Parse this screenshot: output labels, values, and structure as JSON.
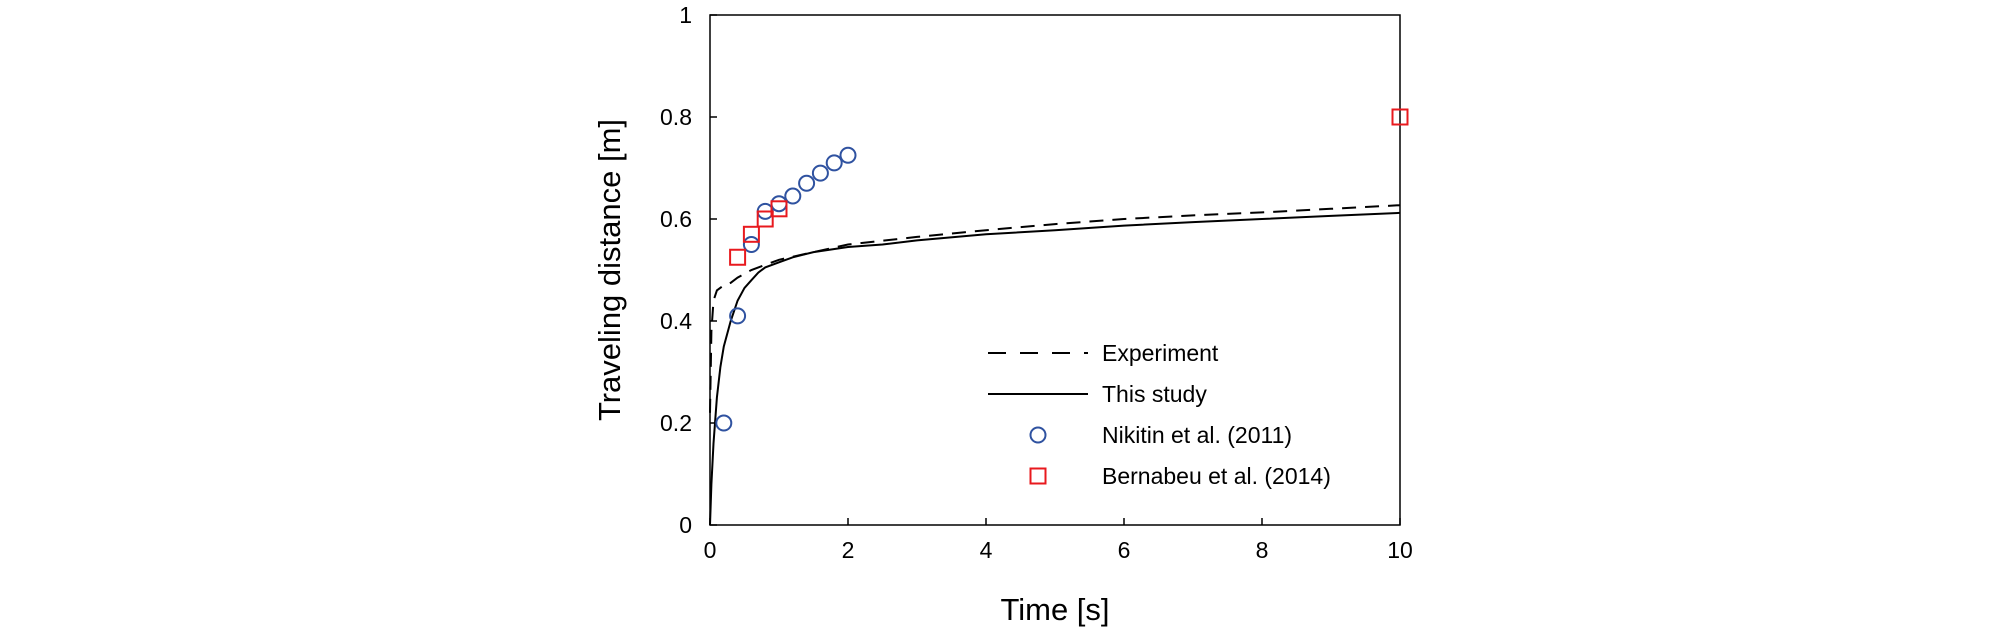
{
  "chart_data": {
    "type": "scatter",
    "title": "",
    "xlabel": "Time [s]",
    "ylabel": "Traveling distance [m]",
    "xlim": [
      0,
      10
    ],
    "ylim": [
      0,
      1
    ],
    "x_ticks": [
      "0",
      "2",
      "4",
      "6",
      "8",
      "10"
    ],
    "y_ticks": [
      "0",
      "0.2",
      "0.4",
      "0.6",
      "0.8",
      "1"
    ],
    "grid": false,
    "legend_position": "lower-right",
    "series": [
      {
        "name": "Experiment",
        "kind": "line",
        "style": "dashed",
        "color": "#000000",
        "x": [
          0,
          0.02,
          0.05,
          0.1,
          0.2,
          0.3,
          0.4,
          0.6,
          0.8,
          1.0,
          1.5,
          2.0,
          3.0,
          4.0,
          5.0,
          6.0,
          7.0,
          8.0,
          9.0,
          10.0
        ],
        "y": [
          0.22,
          0.38,
          0.44,
          0.46,
          0.47,
          0.475,
          0.485,
          0.5,
          0.51,
          0.52,
          0.535,
          0.55,
          0.565,
          0.578,
          0.59,
          0.6,
          0.607,
          0.613,
          0.62,
          0.627
        ]
      },
      {
        "name": "This study",
        "kind": "line",
        "style": "solid",
        "color": "#000000",
        "x": [
          0,
          0.02,
          0.05,
          0.1,
          0.15,
          0.2,
          0.3,
          0.4,
          0.5,
          0.6,
          0.7,
          0.8,
          1.0,
          1.2,
          1.5,
          2.0,
          2.5,
          3.0,
          4.0,
          5.0,
          6.0,
          7.0,
          8.0,
          9.0,
          10.0
        ],
        "y": [
          0,
          0.08,
          0.16,
          0.25,
          0.31,
          0.35,
          0.4,
          0.44,
          0.465,
          0.48,
          0.495,
          0.505,
          0.515,
          0.525,
          0.535,
          0.545,
          0.55,
          0.558,
          0.57,
          0.578,
          0.587,
          0.594,
          0.6,
          0.606,
          0.612
        ]
      },
      {
        "name": "Nikitin et al. (2011)",
        "kind": "scatter",
        "marker": "circle",
        "color": "#2f52a0",
        "x": [
          0.2,
          0.4,
          0.6,
          0.8,
          1.0,
          1.2,
          1.4,
          1.6,
          1.8,
          2.0
        ],
        "y": [
          0.2,
          0.41,
          0.55,
          0.615,
          0.63,
          0.645,
          0.67,
          0.69,
          0.71,
          0.725
        ]
      },
      {
        "name": "Bernabeu et al. (2014)",
        "kind": "scatter",
        "marker": "square",
        "color": "#e8191e",
        "x": [
          0.4,
          0.6,
          0.8,
          1.0,
          10.0
        ],
        "y": [
          0.525,
          0.57,
          0.6,
          0.62,
          0.8
        ]
      }
    ]
  }
}
